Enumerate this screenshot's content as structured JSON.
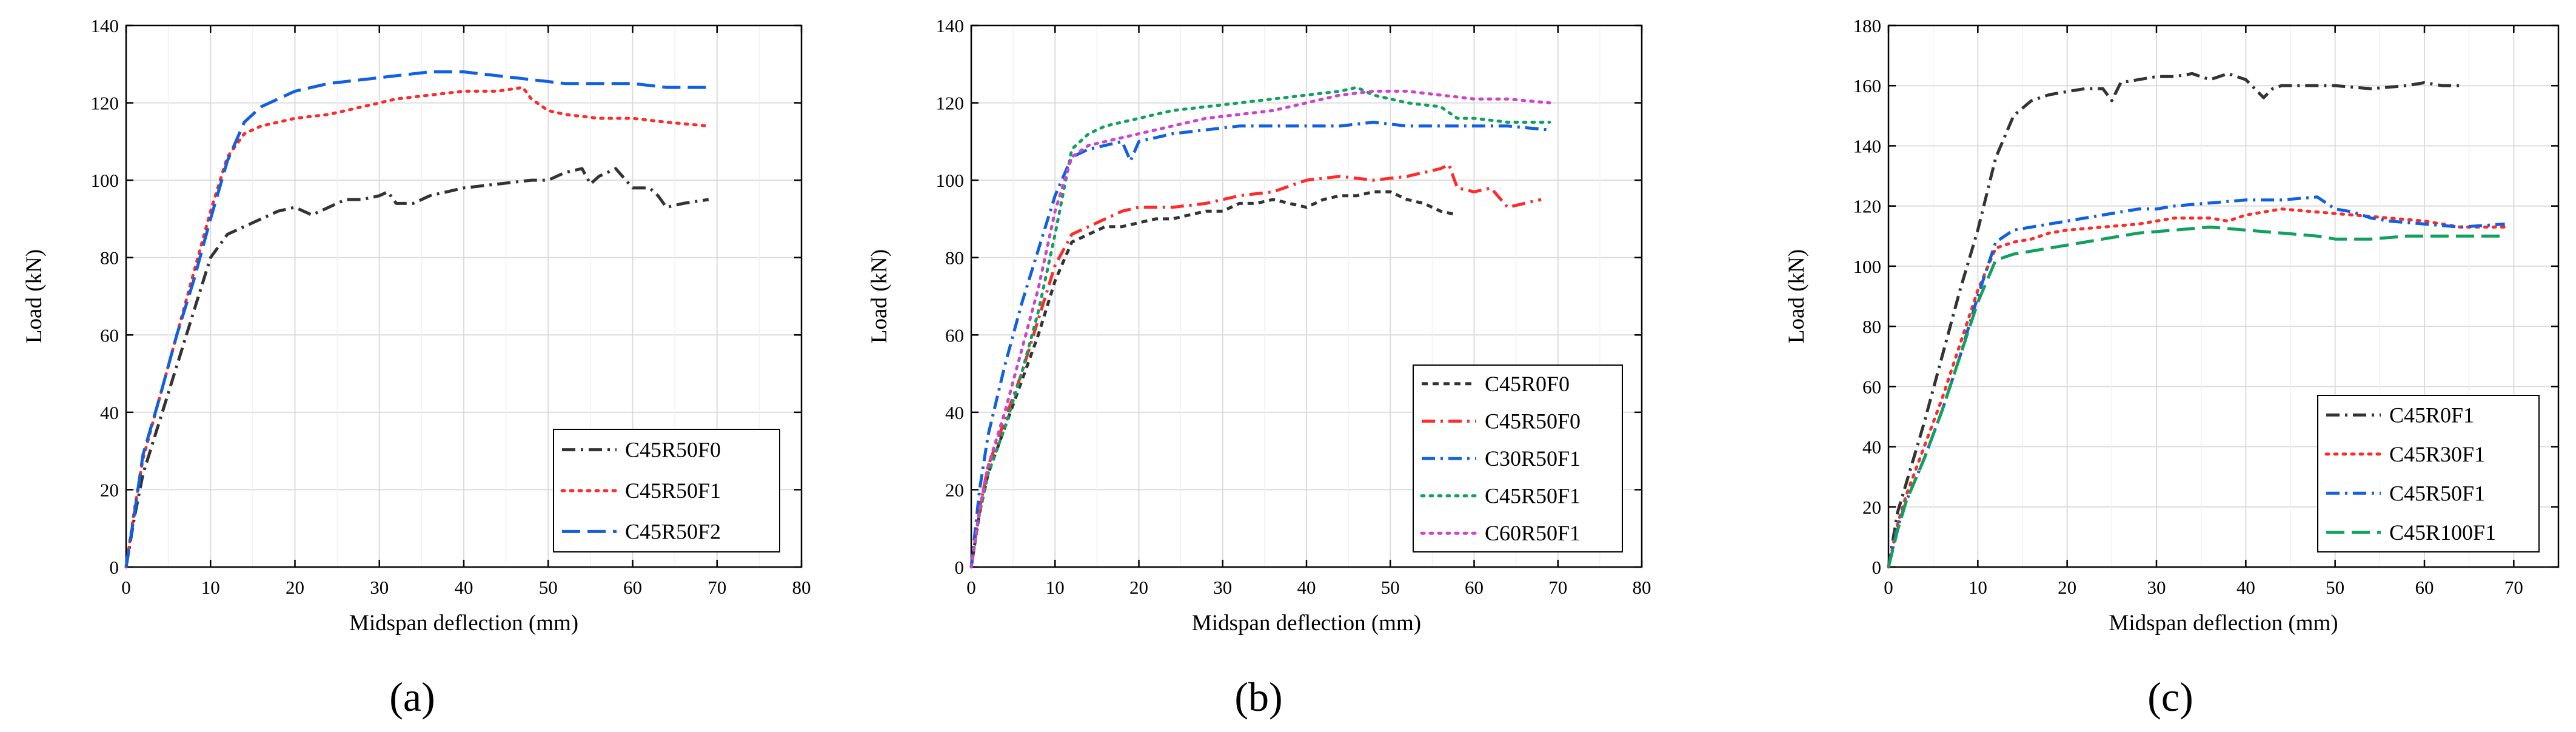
{
  "figure": {
    "panel_labels": [
      "(a)",
      "(b)",
      "(c)"
    ]
  },
  "chart_data": [
    {
      "type": "line",
      "panel": "(a)",
      "title": "",
      "xlabel": "Midspan deflection (mm)",
      "ylabel": "Load (kN)",
      "xlim": [
        0,
        80
      ],
      "ylim": [
        0,
        140
      ],
      "xticks": [
        0,
        10,
        20,
        30,
        40,
        50,
        60,
        70,
        80
      ],
      "yticks": [
        0,
        20,
        40,
        60,
        80,
        100,
        120,
        140
      ],
      "grid": true,
      "legend_position": "bottom-right",
      "series": [
        {
          "name": "C45R50F0",
          "color": "#333333",
          "dash": "dashdot",
          "x": [
            0,
            1,
            2,
            4,
            6,
            8,
            10,
            12,
            14,
            16,
            18,
            20,
            22,
            24,
            26,
            28,
            30,
            31,
            32,
            34,
            36,
            38,
            40,
            44,
            48,
            50,
            52,
            54,
            55,
            56,
            58,
            60,
            62,
            63,
            64,
            66,
            69
          ],
          "y": [
            0,
            13,
            24,
            38,
            52,
            66,
            80,
            86,
            88,
            90,
            92,
            93,
            91,
            93,
            95,
            95,
            96,
            97,
            94,
            94,
            96,
            97,
            98,
            99,
            100,
            100,
            102,
            103,
            99,
            101,
            103,
            98,
            98,
            96,
            93,
            94,
            95
          ]
        },
        {
          "name": "C45R50F1",
          "color": "#ff2a2a",
          "dash": "dot",
          "x": [
            0,
            1,
            2,
            4,
            6,
            8,
            10,
            12,
            14,
            16,
            18,
            20,
            24,
            28,
            30,
            32,
            36,
            40,
            44,
            47,
            48,
            50,
            52,
            56,
            60,
            64,
            69
          ],
          "y": [
            0,
            15,
            28,
            44,
            60,
            76,
            92,
            106,
            112,
            114,
            115,
            116,
            117,
            119,
            120,
            121,
            122,
            123,
            123,
            124,
            121,
            118,
            117,
            116,
            116,
            115,
            114
          ]
        },
        {
          "name": "C45R50F2",
          "color": "#1060e0",
          "dash": "longdash",
          "x": [
            0,
            1,
            2,
            4,
            6,
            8,
            10,
            12,
            14,
            16,
            18,
            20,
            24,
            28,
            32,
            36,
            40,
            44,
            48,
            52,
            56,
            60,
            64,
            69
          ],
          "y": [
            0,
            14,
            29,
            44,
            60,
            74,
            90,
            105,
            115,
            119,
            121,
            123,
            125,
            126,
            127,
            128,
            128,
            127,
            126,
            125,
            125,
            125,
            124,
            124
          ]
        }
      ]
    },
    {
      "type": "line",
      "panel": "(b)",
      "title": "",
      "xlabel": "Midspan deflection (mm)",
      "ylabel": "Load (kN)",
      "xlim": [
        0,
        80
      ],
      "ylim": [
        0,
        140
      ],
      "xticks": [
        0,
        10,
        20,
        30,
        40,
        50,
        60,
        70,
        80
      ],
      "yticks": [
        0,
        20,
        40,
        60,
        80,
        100,
        120,
        140
      ],
      "grid": true,
      "legend_position": "bottom-right",
      "series": [
        {
          "name": "C45R0F0",
          "color": "#333333",
          "dash": "dash",
          "x": [
            0,
            1,
            2,
            4,
            6,
            8,
            10,
            12,
            14,
            16,
            18,
            20,
            22,
            24,
            26,
            28,
            30,
            32,
            34,
            36,
            38,
            40,
            42,
            44,
            46,
            48,
            50,
            52,
            54,
            56,
            58
          ],
          "y": [
            0,
            14,
            24,
            36,
            48,
            60,
            74,
            84,
            86,
            88,
            88,
            89,
            90,
            90,
            91,
            92,
            92,
            94,
            94,
            95,
            94,
            93,
            95,
            96,
            96,
            97,
            97,
            95,
            94,
            92,
            91
          ]
        },
        {
          "name": "C45R50F0",
          "color": "#ff2a2a",
          "dash": "dashdot",
          "x": [
            0,
            1,
            2,
            4,
            6,
            8,
            10,
            12,
            14,
            16,
            18,
            20,
            24,
            28,
            32,
            36,
            40,
            44,
            48,
            52,
            54,
            56,
            57,
            58,
            60,
            62,
            64,
            66,
            68
          ],
          "y": [
            0,
            15,
            26,
            38,
            50,
            64,
            78,
            86,
            88,
            90,
            92,
            93,
            93,
            94,
            96,
            97,
            100,
            101,
            100,
            101,
            102,
            103,
            104,
            98,
            97,
            98,
            93,
            94,
            95
          ]
        },
        {
          "name": "C30R50F1",
          "color": "#1060e0",
          "dash": "dashdot",
          "x": [
            0,
            1,
            2,
            4,
            6,
            8,
            10,
            12,
            14,
            16,
            18,
            19,
            20,
            24,
            28,
            32,
            36,
            40,
            44,
            48,
            52,
            56,
            60,
            64,
            69
          ],
          "y": [
            0,
            20,
            34,
            52,
            68,
            82,
            96,
            106,
            108,
            109,
            110,
            105,
            110,
            112,
            113,
            114,
            114,
            114,
            114,
            115,
            114,
            114,
            114,
            114,
            113
          ]
        },
        {
          "name": "C45R50F1",
          "color": "#10a060",
          "dash": "dot",
          "x": [
            0,
            1,
            2,
            4,
            6,
            8,
            10,
            12,
            14,
            16,
            18,
            20,
            24,
            28,
            32,
            36,
            40,
            44,
            46,
            48,
            50,
            52,
            56,
            58,
            60,
            64,
            69
          ],
          "y": [
            0,
            14,
            24,
            36,
            50,
            66,
            86,
            108,
            112,
            114,
            115,
            116,
            118,
            119,
            120,
            121,
            122,
            123,
            124,
            122,
            121,
            120,
            119,
            116,
            116,
            115,
            115
          ]
        },
        {
          "name": "C60R50F1",
          "color": "#cc44cc",
          "dash": "dot",
          "x": [
            0,
            1,
            2,
            4,
            6,
            8,
            10,
            12,
            14,
            16,
            18,
            20,
            24,
            28,
            32,
            36,
            40,
            44,
            48,
            50,
            52,
            56,
            60,
            64,
            69
          ],
          "y": [
            0,
            15,
            26,
            40,
            56,
            72,
            92,
            106,
            109,
            110,
            111,
            112,
            114,
            116,
            117,
            118,
            120,
            122,
            123,
            123,
            123,
            122,
            121,
            121,
            120
          ]
        }
      ]
    },
    {
      "type": "line",
      "panel": "(c)",
      "title": "",
      "xlabel": "Midspan deflection (mm)",
      "ylabel": "Load (kN)",
      "xlim": [
        0,
        75
      ],
      "ylim": [
        0,
        180
      ],
      "xticks": [
        0,
        10,
        20,
        30,
        40,
        50,
        60,
        70
      ],
      "yticks": [
        0,
        20,
        40,
        60,
        80,
        100,
        120,
        140,
        160,
        180
      ],
      "grid": true,
      "legend_position": "bottom-right",
      "series": [
        {
          "name": "C45R0F1",
          "color": "#333333",
          "dash": "dashdot",
          "x": [
            0,
            1,
            2,
            4,
            6,
            8,
            10,
            12,
            14,
            16,
            18,
            20,
            22,
            24,
            25,
            26,
            28,
            30,
            32,
            34,
            36,
            38,
            40,
            42,
            43,
            44,
            46,
            50,
            54,
            58,
            60,
            62,
            64
          ],
          "y": [
            0,
            18,
            28,
            48,
            70,
            92,
            112,
            136,
            150,
            155,
            157,
            158,
            159,
            159,
            155,
            161,
            162,
            163,
            163,
            164,
            162,
            164,
            162,
            156,
            159,
            160,
            160,
            160,
            159,
            160,
            161,
            160,
            160
          ]
        },
        {
          "name": "C45R30F1",
          "color": "#ff2a2a",
          "dash": "dot",
          "x": [
            0,
            1,
            2,
            4,
            6,
            8,
            10,
            12,
            14,
            16,
            18,
            20,
            24,
            28,
            32,
            36,
            38,
            40,
            44,
            48,
            52,
            56,
            60,
            64,
            69
          ],
          "y": [
            0,
            14,
            24,
            40,
            56,
            74,
            92,
            106,
            108,
            109,
            111,
            112,
            113,
            114,
            116,
            116,
            115,
            117,
            119,
            118,
            117,
            116,
            115,
            113,
            113
          ]
        },
        {
          "name": "C45R50F1",
          "color": "#1060e0",
          "dash": "dashdot",
          "x": [
            0,
            1,
            2,
            4,
            6,
            8,
            10,
            12,
            14,
            16,
            18,
            20,
            24,
            28,
            30,
            32,
            36,
            40,
            44,
            48,
            50,
            52,
            54,
            56,
            60,
            64,
            69
          ],
          "y": [
            0,
            13,
            22,
            36,
            52,
            70,
            90,
            108,
            112,
            113,
            114,
            115,
            117,
            119,
            119,
            120,
            121,
            122,
            122,
            123,
            119,
            118,
            116,
            115,
            114,
            113,
            114
          ]
        },
        {
          "name": "C45R100F1",
          "color": "#10a060",
          "dash": "longdash",
          "x": [
            0,
            1,
            2,
            4,
            6,
            8,
            10,
            12,
            14,
            16,
            18,
            20,
            24,
            28,
            32,
            36,
            40,
            44,
            48,
            50,
            54,
            58,
            62,
            66,
            69
          ],
          "y": [
            0,
            12,
            22,
            36,
            52,
            70,
            88,
            102,
            104,
            105,
            106,
            107,
            109,
            111,
            112,
            113,
            112,
            111,
            110,
            109,
            109,
            110,
            110,
            110,
            110
          ]
        }
      ]
    }
  ]
}
